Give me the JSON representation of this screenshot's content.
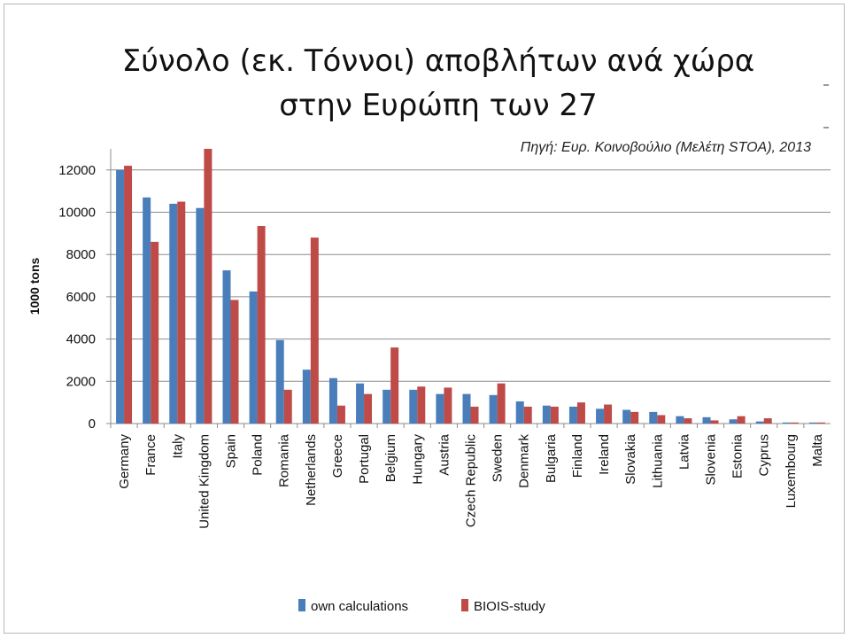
{
  "slide": {
    "title_line1": "Σύνολο (εκ. Τόννοι) αποβλήτων ανά χώρα",
    "title_line2": "στην Ευρώπη των 27",
    "source": "Πηγή: Ευρ. Κοινοβούλιο (Μελέτη STOA), 2013"
  },
  "chart_data": {
    "type": "bar",
    "title": "",
    "xlabel": "",
    "ylabel": "1000 tons",
    "ylim": [
      0,
      13000
    ],
    "yticks": [
      0,
      2000,
      4000,
      6000,
      8000,
      10000,
      12000
    ],
    "grid": true,
    "legend_position": "bottom",
    "categories": [
      "Germany",
      "France",
      "Italy",
      "United Kingdom",
      "Spain",
      "Poland",
      "Romania",
      "Netherlands",
      "Greece",
      "Portugal",
      "Belgium",
      "Hungary",
      "Austria",
      "Czech Republic",
      "Sweden",
      "Denmark",
      "Bulgaria",
      "Finland",
      "Ireland",
      "Slovakia",
      "Lithuania",
      "Latvia",
      "Slovenia",
      "Estonia",
      "Cyprus",
      "Luxembourg",
      "Malta"
    ],
    "series": [
      {
        "name": "own calculations",
        "color": "#4a7ebb",
        "values": [
          12000,
          10700,
          10400,
          10200,
          7250,
          6250,
          3950,
          2550,
          2150,
          1900,
          1600,
          1600,
          1400,
          1400,
          1350,
          1050,
          850,
          800,
          700,
          650,
          550,
          350,
          300,
          200,
          100,
          50,
          50
        ]
      },
      {
        "name": "BIOIS-study",
        "color": "#be4b48",
        "values": [
          12200,
          8600,
          10500,
          13000,
          5850,
          9350,
          1600,
          8800,
          850,
          1400,
          3600,
          1750,
          1700,
          800,
          1900,
          800,
          800,
          1000,
          900,
          550,
          400,
          250,
          150,
          350,
          250,
          50,
          50
        ]
      }
    ]
  }
}
